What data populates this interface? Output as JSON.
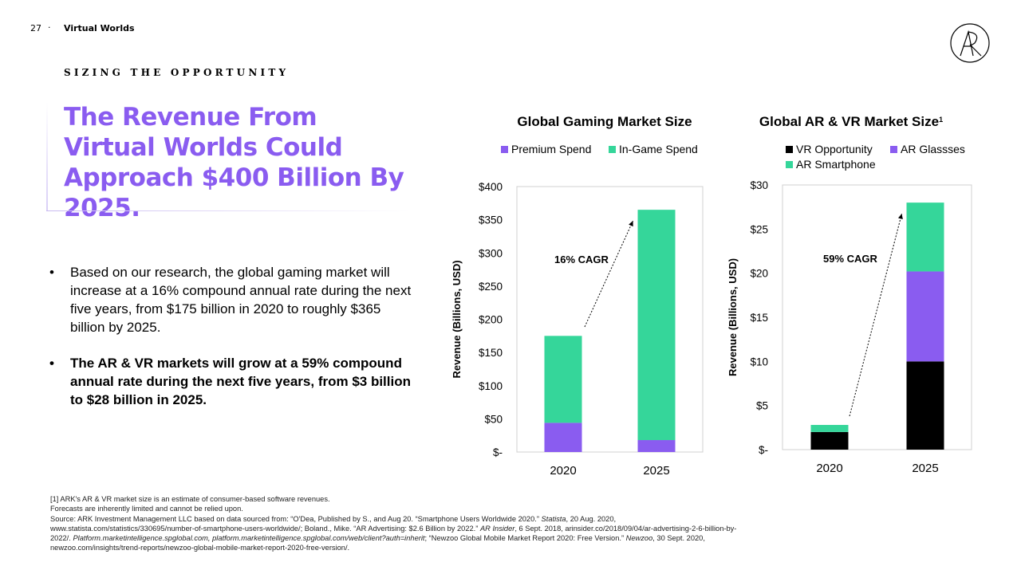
{
  "header": {
    "page_number": "27",
    "separator": "·",
    "section": "Virtual Worlds"
  },
  "eyebrow": "SIZING THE OPPORTUNITY",
  "title": "The Revenue From Virtual Worlds Could Approach $400 Billion By 2025.",
  "bullets": [
    "Based on our research, the global gaming market will increase at a 16% compound annual rate during the next five years, from $175 billion in 2020 to roughly $365 billion by 2025.",
    "The AR & VR markets will grow at a 59% compound annual rate during the next five years, from $3 billion to $28 billion in 2025."
  ],
  "colors": {
    "accent": "#8a5cf0",
    "premium": "#8a5cf0",
    "in_game": "#35d69a",
    "vr": "#000000",
    "ar_glasses": "#8a5cf0",
    "ar_smartphone": "#35d69a"
  },
  "footnote": {
    "line1": "[1] ARK's AR & VR market size is an estimate of consumer-based software revenues.",
    "line2": "Forecasts are inherently limited and cannot be relied upon.",
    "s1": "Source: ARK Investment Management LLC based on data sourced from: “O'Dea, Published by S., and Aug 20. “Smartphone Users Worldwide 2020.” ",
    "s2": "Statista",
    "s3": ", 20 Aug. 2020,",
    "s4": "www.statista.com/statistics/330695/number-of-smartphone-users-worldwide/; Boland., Mike. “AR Advertising: $2.6 Billion by 2022.” ",
    "s5": "AR Insider",
    "s6": ", 6 Sept. 2018, arinsider.co/2018/09/04/ar-advertising-2-6-billion-by-",
    "s7": "2022/. ",
    "s8": "Platform.marketintelligence.spglobal.com, platform.marketintelligence.spglobal.com/web/client?auth=inherit",
    "s9": "; “Newzoo Global Mobile Market Report 2020: Free Version.” ",
    "s10": "Newzoo",
    "s11": ", 30 Sept. 2020,",
    "s12": "newzoo.com/insights/trend-reports/newzoo-global-mobile-market-report-2020-free-version/."
  },
  "chart_data": [
    {
      "type": "bar",
      "stacked": true,
      "title": "Global Gaming Market Size",
      "title_sup": "",
      "ylabel": "Revenue (Billions, USD)",
      "xlabel": "",
      "categories": [
        "2020",
        "2025"
      ],
      "ylim": [
        0,
        400
      ],
      "yticks": [
        0,
        50,
        100,
        150,
        200,
        250,
        300,
        350,
        400
      ],
      "ytick_labels": [
        "$-",
        "$50",
        "$100",
        "$150",
        "$200",
        "$250",
        "$300",
        "$350",
        "$400"
      ],
      "series": [
        {
          "name": "Premium Spend",
          "color": "#8a5cf0",
          "values": [
            44,
            18
          ]
        },
        {
          "name": "In-Game Spend",
          "color": "#35d69a",
          "values": [
            131,
            347
          ]
        }
      ],
      "annotation": "16% CAGR",
      "legend": "top"
    },
    {
      "type": "bar",
      "stacked": true,
      "title": "Global AR & VR Market Size",
      "title_sup": "1",
      "ylabel": "Revenue (Billions, USD)",
      "xlabel": "",
      "categories": [
        "2020",
        "2025"
      ],
      "ylim": [
        0,
        30
      ],
      "yticks": [
        0,
        5,
        10,
        15,
        20,
        25,
        30
      ],
      "ytick_labels": [
        "$-",
        "$5",
        "$10",
        "$15",
        "$20",
        "$25",
        "$30"
      ],
      "series": [
        {
          "name": "VR Opportunity",
          "color": "#000000",
          "values": [
            2,
            10
          ]
        },
        {
          "name": "AR Glassses",
          "color": "#8a5cf0",
          "values": [
            0,
            10.2
          ]
        },
        {
          "name": "AR Smartphone",
          "color": "#35d69a",
          "values": [
            0.8,
            7.8
          ]
        }
      ],
      "annotation": "59% CAGR",
      "legend": "top"
    }
  ]
}
